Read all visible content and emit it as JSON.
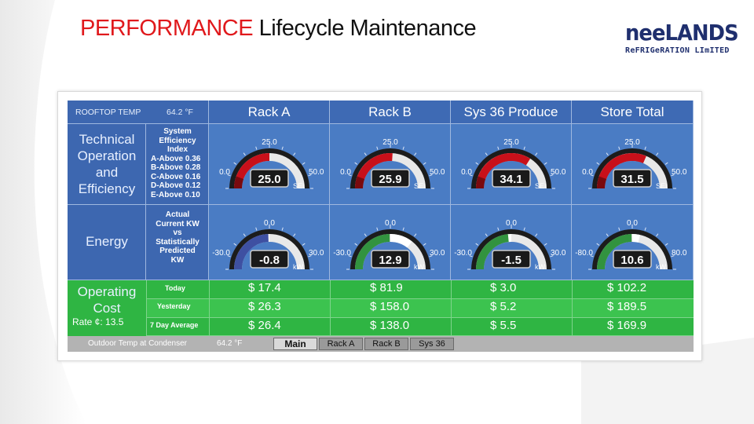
{
  "header": {
    "title_accent": "PERFORMANCE",
    "title_rest": " Lifecycle Maintenance"
  },
  "logo": {
    "name": "neeLANDS",
    "sub": "ReFRIGeRATION LImITED"
  },
  "dashboard": {
    "rooftop_label": "ROOFTOP TEMP",
    "rooftop_value": "64.2 °F",
    "columns": [
      "Rack A",
      "Rack B",
      "Sys 36 Produce",
      "Store Total"
    ],
    "rows": {
      "technical": {
        "title": "Technical Operation and Efficiency",
        "title_lines": [
          "Technical",
          "Operation",
          "and",
          "Efficiency"
        ],
        "desc_lines": [
          "System",
          "Efficiency",
          "Index"
        ],
        "grades": [
          "A-Above 0.36",
          "B-Above 0.28",
          "C-Above 0.16",
          "D-Above 0.12",
          "E-Above 0.10"
        ],
        "gauges": [
          {
            "value": "25.0",
            "min": "0.0",
            "max": "50.0",
            "top": "25.0",
            "unit": "SEI",
            "level": 0.5
          },
          {
            "value": "25.9",
            "min": "0.0",
            "max": "50.0",
            "top": "25.0",
            "unit": "SEI",
            "level": 0.52
          },
          {
            "value": "34.1",
            "min": "0.0",
            "max": "50.0",
            "top": "25.0",
            "unit": "SEI",
            "level": 0.68
          },
          {
            "value": "31.5",
            "min": "0.0",
            "max": "50.0",
            "top": "25.0",
            "unit": "SEI",
            "level": 0.63
          }
        ]
      },
      "energy": {
        "title": "Energy",
        "desc_lines": [
          "Actual",
          "Current KW",
          "vs",
          "Statistically",
          "Predicted",
          "KW"
        ],
        "gauges": [
          {
            "value": "-0.8",
            "min": "-30.0",
            "max": "30.0",
            "top": "0.0",
            "unit": "kW",
            "level": 0.49
          },
          {
            "value": "12.9",
            "min": "-30.0",
            "max": "30.0",
            "top": "0.0",
            "unit": "kW",
            "level": 0.71
          },
          {
            "value": "-1.5",
            "min": "-30.0",
            "max": "30.0",
            "top": "0.0",
            "unit": "kW",
            "level": 0.47
          },
          {
            "value": "10.6",
            "min": "-80.0",
            "max": "80.0",
            "top": "0.0",
            "unit": "kW",
            "level": 0.57
          }
        ]
      },
      "cost": {
        "title_lines": [
          "Operating",
          "Cost"
        ],
        "rate": "Rate ¢: 13.5",
        "periods": [
          {
            "label": "Today",
            "values": [
              "$ 17.4",
              "$  81.9",
              "$ 3.0",
              "$ 102.2"
            ]
          },
          {
            "label": "Yesterday",
            "values": [
              "$ 26.3",
              "$  158.0",
              "$ 5.2",
              "$ 189.5"
            ]
          },
          {
            "label": "7 Day Average",
            "values": [
              "$ 26.4",
              "$  138.0",
              "$ 5.5",
              "$ 169.9"
            ]
          }
        ]
      }
    },
    "footer": {
      "label": "Outdoor Temp at Condenser",
      "value": "64.2 °F",
      "tabs": [
        "Main",
        "Rack A",
        "Rack B",
        "Sys 36"
      ],
      "active_tab": "Main"
    }
  }
}
